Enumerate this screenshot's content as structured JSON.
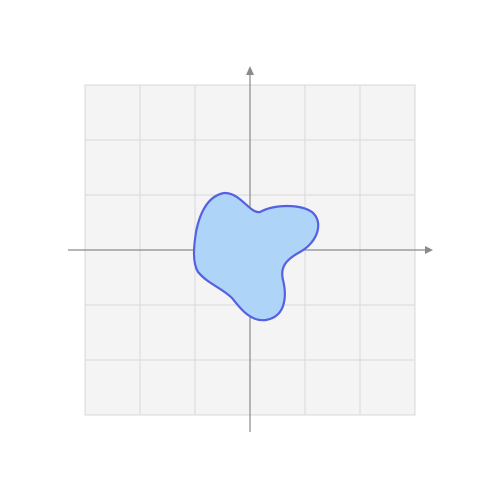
{
  "figure": {
    "kind": "closed blob shape on a square grid with coordinate axes",
    "grid": {
      "cells_per_side": 6,
      "range": [
        -3,
        3
      ],
      "background": "#f4f4f4",
      "line_color": "#d9d9d9"
    },
    "axes": {
      "color": "#8a8a8a",
      "arrowheads": [
        "x-positive",
        "y-positive"
      ]
    },
    "blob": {
      "fill": "#aed4f8",
      "stroke": "#5660e2"
    }
  }
}
